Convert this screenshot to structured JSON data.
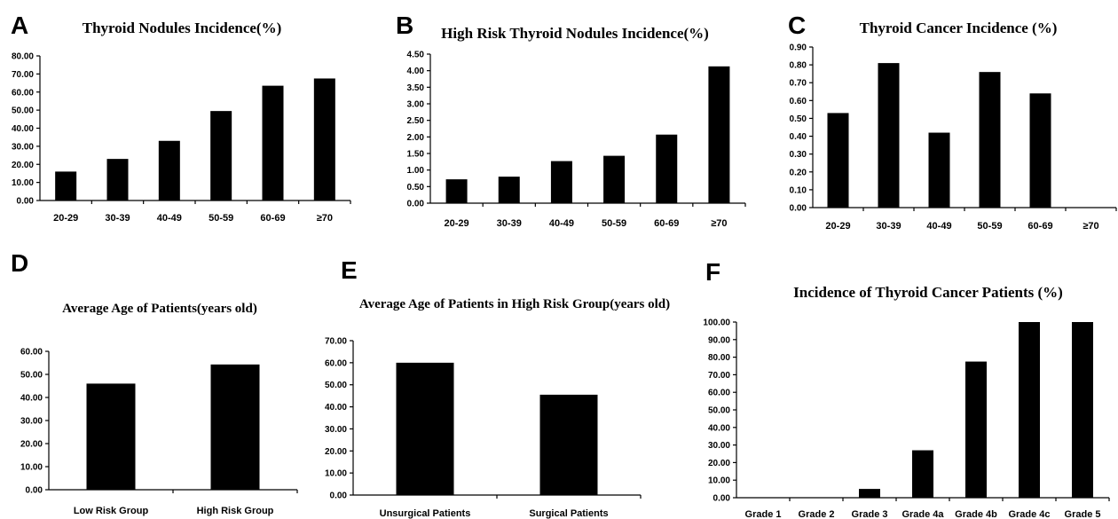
{
  "figure": {
    "panels": [
      "A",
      "B",
      "C",
      "D",
      "E",
      "F"
    ]
  },
  "chart_data": [
    {
      "panel": "A",
      "type": "bar",
      "title": "Thyroid Nodules Incidence(%)",
      "categories": [
        "20-29",
        "30-39",
        "40-49",
        "50-59",
        "60-69",
        "≥70"
      ],
      "values": [
        16.0,
        23.0,
        33.0,
        49.5,
        63.5,
        67.5
      ],
      "ylim": [
        0,
        80
      ],
      "yticks": [
        "0.00",
        "10.00",
        "20.00",
        "30.00",
        "40.00",
        "50.00",
        "60.00",
        "70.00",
        "80.00"
      ],
      "xlabel": "",
      "ylabel": "",
      "grid": false
    },
    {
      "panel": "B",
      "type": "bar",
      "title": "High Risk Thyroid Nodules Incidence(%)",
      "categories": [
        "20-29",
        "30-39",
        "40-49",
        "50-59",
        "60-69",
        "≥70"
      ],
      "values": [
        0.72,
        0.8,
        1.27,
        1.43,
        2.07,
        4.13
      ],
      "ylim": [
        0,
        4.5
      ],
      "yticks": [
        "0.00",
        "0.50",
        "1.00",
        "1.50",
        "2.00",
        "2.50",
        "3.00",
        "3.50",
        "4.00",
        "4.50"
      ],
      "xlabel": "",
      "ylabel": "",
      "grid": false
    },
    {
      "panel": "C",
      "type": "bar",
      "title": "Thyroid Cancer Incidence (%)",
      "categories": [
        "20-29",
        "30-39",
        "40-49",
        "50-59",
        "60-69",
        "≥70"
      ],
      "values": [
        0.53,
        0.81,
        0.42,
        0.76,
        0.64,
        0
      ],
      "ylim": [
        0,
        0.9
      ],
      "yticks": [
        "0.00",
        "0.10",
        "0.20",
        "0.30",
        "0.40",
        "0.50",
        "0.60",
        "0.70",
        "0.80",
        "0.90"
      ],
      "xlabel": "",
      "ylabel": "",
      "grid": false
    },
    {
      "panel": "D",
      "type": "bar",
      "title": "Average Age of Patients(years old)",
      "categories": [
        "Low Risk Group",
        "High Risk Group"
      ],
      "values": [
        46.0,
        54.3
      ],
      "ylim": [
        0,
        60
      ],
      "yticks": [
        "0.00",
        "10.00",
        "20.00",
        "30.00",
        "40.00",
        "50.00",
        "60.00"
      ],
      "xlabel": "",
      "ylabel": "",
      "grid": false
    },
    {
      "panel": "E",
      "type": "bar",
      "title": "Average Age of Patients in High Risk Group(years old)",
      "categories": [
        "Unsurgical Patients",
        "Surgical Patients"
      ],
      "values": [
        60.0,
        45.5
      ],
      "ylim": [
        0,
        70
      ],
      "yticks": [
        "0.00",
        "10.00",
        "20.00",
        "30.00",
        "40.00",
        "50.00",
        "60.00",
        "70.00"
      ],
      "xlabel": "",
      "ylabel": "",
      "grid": false
    },
    {
      "panel": "F",
      "type": "bar",
      "title": "Incidence of Thyroid Cancer Patients (%)",
      "categories": [
        "Grade 1",
        "Grade 2",
        "Grade 3",
        "Grade 4a",
        "Grade 4b",
        "Grade 4c",
        "Grade 5"
      ],
      "values": [
        0,
        0,
        5.0,
        27.0,
        77.5,
        100.0,
        100.0
      ],
      "ylim": [
        0,
        100
      ],
      "yticks": [
        "0.00",
        "10.00",
        "20.00",
        "30.00",
        "40.00",
        "50.00",
        "60.00",
        "70.00",
        "80.00",
        "90.00",
        "100.00"
      ],
      "xlabel": "",
      "ylabel": "",
      "grid": false
    }
  ]
}
